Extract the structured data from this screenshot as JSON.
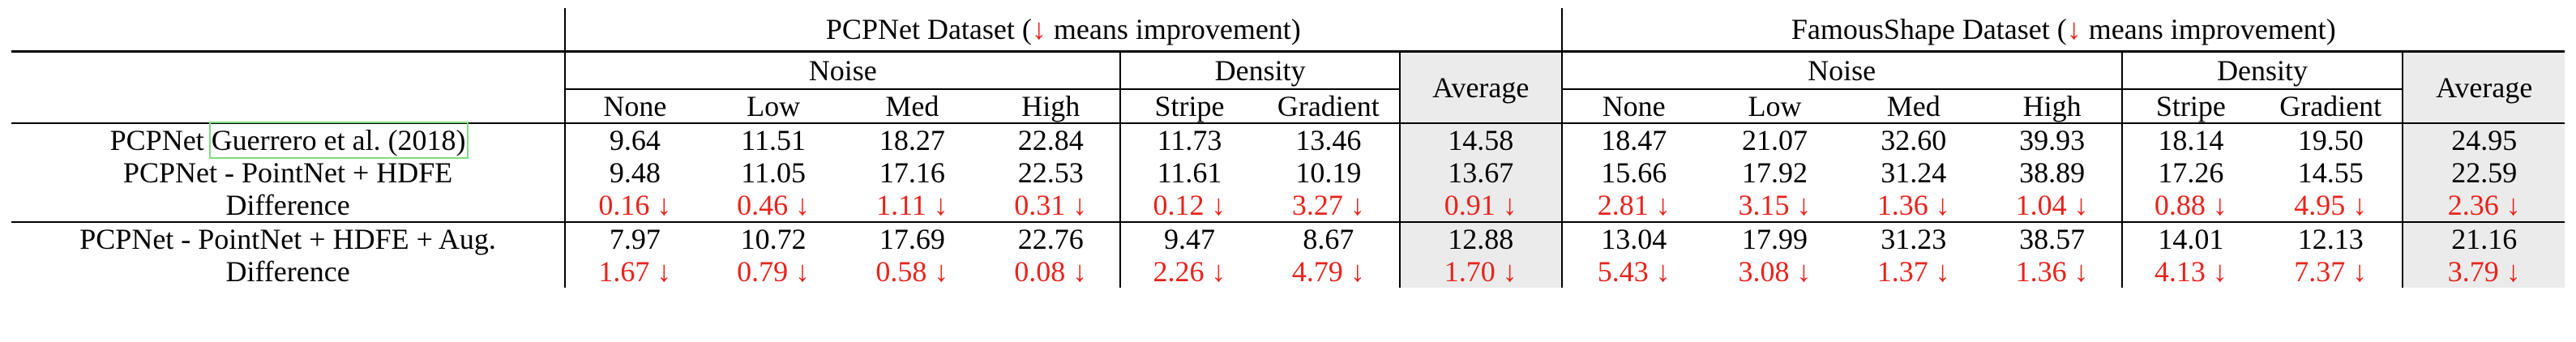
{
  "headers": {
    "pcpnet_title": "PCPNet Dataset (",
    "famous_title": "FamousShape Dataset (",
    "arrow": "↓",
    "title_suffix": " means improvement)",
    "noise": "Noise",
    "density": "Density",
    "average": "Average",
    "sub": [
      "None",
      "Low",
      "Med",
      "High",
      "Stripe",
      "Gradient"
    ]
  },
  "rows": [
    {
      "label_prefix": "PCPNet ",
      "label_cite": "Guerrero et al. (2018)",
      "pcp": [
        "9.64",
        "11.51",
        "18.27",
        "22.84",
        "11.73",
        "13.46"
      ],
      "pcp_avg": "14.58",
      "fam": [
        "18.47",
        "21.07",
        "32.60",
        "39.93",
        "18.14",
        "19.50"
      ],
      "fam_avg": "24.95"
    },
    {
      "label": "PCPNet - PointNet + HDFE",
      "pcp": [
        "9.48",
        "11.05",
        "17.16",
        "22.53",
        "11.61",
        "10.19"
      ],
      "pcp_avg": "13.67",
      "fam": [
        "15.66",
        "17.92",
        "31.24",
        "38.89",
        "17.26",
        "14.55"
      ],
      "fam_avg": "22.59"
    },
    {
      "label": "Difference",
      "pcp": [
        "0.16 ↓",
        "0.46 ↓",
        "1.11 ↓",
        "0.31 ↓",
        "0.12 ↓",
        "3.27 ↓"
      ],
      "pcp_avg": "0.91 ↓",
      "fam": [
        "2.81 ↓",
        "3.15 ↓",
        "1.36 ↓",
        "1.04 ↓",
        "0.88 ↓",
        "4.95 ↓"
      ],
      "fam_avg": "2.36 ↓"
    },
    {
      "label": "PCPNet - PointNet + HDFE + Aug.",
      "pcp": [
        "7.97",
        "10.72",
        "17.69",
        "22.76",
        "9.47",
        "8.67"
      ],
      "pcp_avg": "12.88",
      "fam": [
        "13.04",
        "17.99",
        "31.23",
        "38.57",
        "14.01",
        "12.13"
      ],
      "fam_avg": "21.16"
    },
    {
      "label": "Difference",
      "pcp": [
        "1.67 ↓",
        "0.79 ↓",
        "0.58 ↓",
        "0.08 ↓",
        "2.26 ↓",
        "4.79 ↓"
      ],
      "pcp_avg": "1.70 ↓",
      "fam": [
        "5.43 ↓",
        "3.08 ↓",
        "1.37 ↓",
        "1.36 ↓",
        "4.13 ↓",
        "7.37 ↓"
      ],
      "fam_avg": "3.79 ↓"
    }
  ],
  "colors": {
    "improvement_red": "#e8231c",
    "average_shade": "#ebebeb",
    "citation_box": "#7fdc7f"
  }
}
